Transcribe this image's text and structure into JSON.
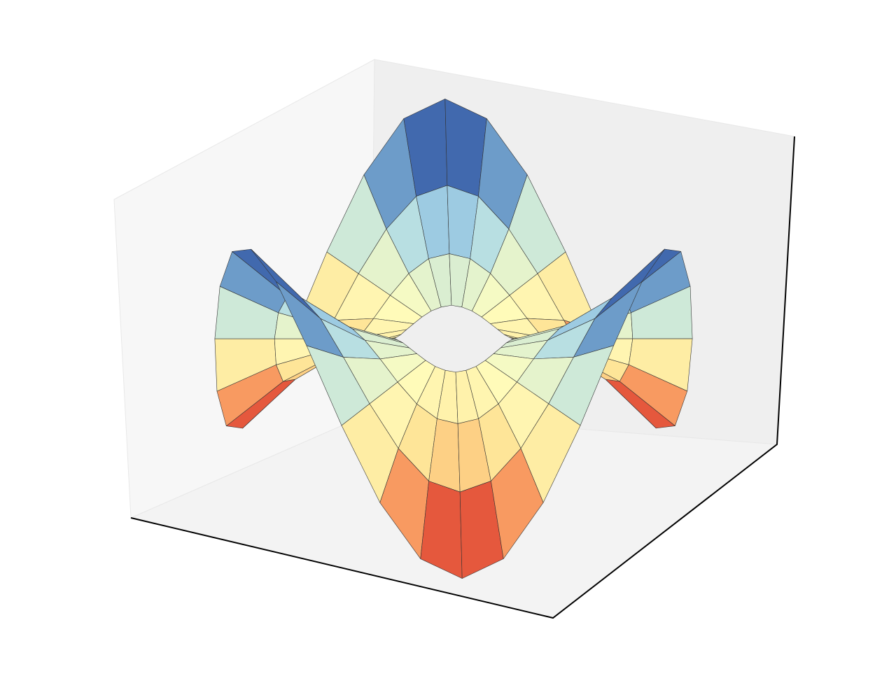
{
  "chart_data": {
    "type": "surface",
    "colormap": [
      "#a50026",
      "#f46d43",
      "#fee090",
      "#ffffbf",
      "#abd9e9",
      "#4575b4",
      "#313695"
    ],
    "r": [
      0.25,
      0.5,
      0.75,
      1
    ],
    "theta": [
      0,
      10,
      20,
      30,
      40,
      50,
      60,
      70,
      80,
      90,
      100,
      110,
      120,
      130,
      140,
      150,
      160,
      170,
      180,
      190,
      200,
      210,
      220,
      230,
      240,
      250,
      260,
      270,
      280,
      290,
      300,
      310,
      320,
      330,
      340,
      350
    ],
    "z": [
      [
        0.06,
        0.05,
        0.03,
        0,
        -0.03,
        -0.05,
        -0.06,
        -0.05,
        -0.03,
        0,
        0.03,
        0.05,
        0.06,
        0.05,
        0.03,
        0,
        -0.03,
        -0.05,
        -0.06,
        -0.05,
        -0.03,
        0,
        0.03,
        0.05,
        0.06,
        0.05,
        0.03,
        0,
        -0.03,
        -0.05,
        -0.06,
        -0.05,
        -0.03,
        0,
        0.03,
        0.05
      ],
      [
        0.25,
        0.22,
        0.13,
        0,
        -0.13,
        -0.22,
        -0.25,
        -0.22,
        -0.13,
        0,
        0.13,
        0.22,
        0.25,
        0.22,
        0.13,
        0,
        -0.13,
        -0.22,
        -0.25,
        -0.22,
        -0.13,
        0,
        0.13,
        0.22,
        0.25,
        0.22,
        0.13,
        0,
        -0.13,
        -0.22,
        -0.25,
        -0.22,
        -0.13,
        0,
        0.13,
        0.22
      ],
      [
        0.56,
        0.49,
        0.28,
        0,
        -0.28,
        -0.49,
        -0.56,
        -0.49,
        -0.28,
        0,
        0.28,
        0.49,
        0.56,
        0.49,
        0.28,
        0,
        -0.28,
        -0.49,
        -0.56,
        -0.49,
        -0.28,
        0,
        0.28,
        0.49,
        0.56,
        0.49,
        0.28,
        0,
        -0.28,
        -0.49,
        -0.56,
        -0.49,
        -0.28,
        0,
        0.28,
        0.49
      ],
      [
        1,
        0.87,
        0.5,
        0,
        -0.5,
        -0.87,
        -1,
        -0.87,
        -0.5,
        0,
        0.5,
        0.87,
        1,
        0.87,
        0.5,
        0,
        -0.5,
        -0.87,
        -1,
        -0.87,
        -0.5,
        0,
        0.5,
        0.87,
        1,
        0.87,
        0.5,
        0,
        -0.5,
        -0.87,
        -1,
        -0.87,
        -0.5,
        0,
        0.5,
        0.87
      ]
    ]
  }
}
